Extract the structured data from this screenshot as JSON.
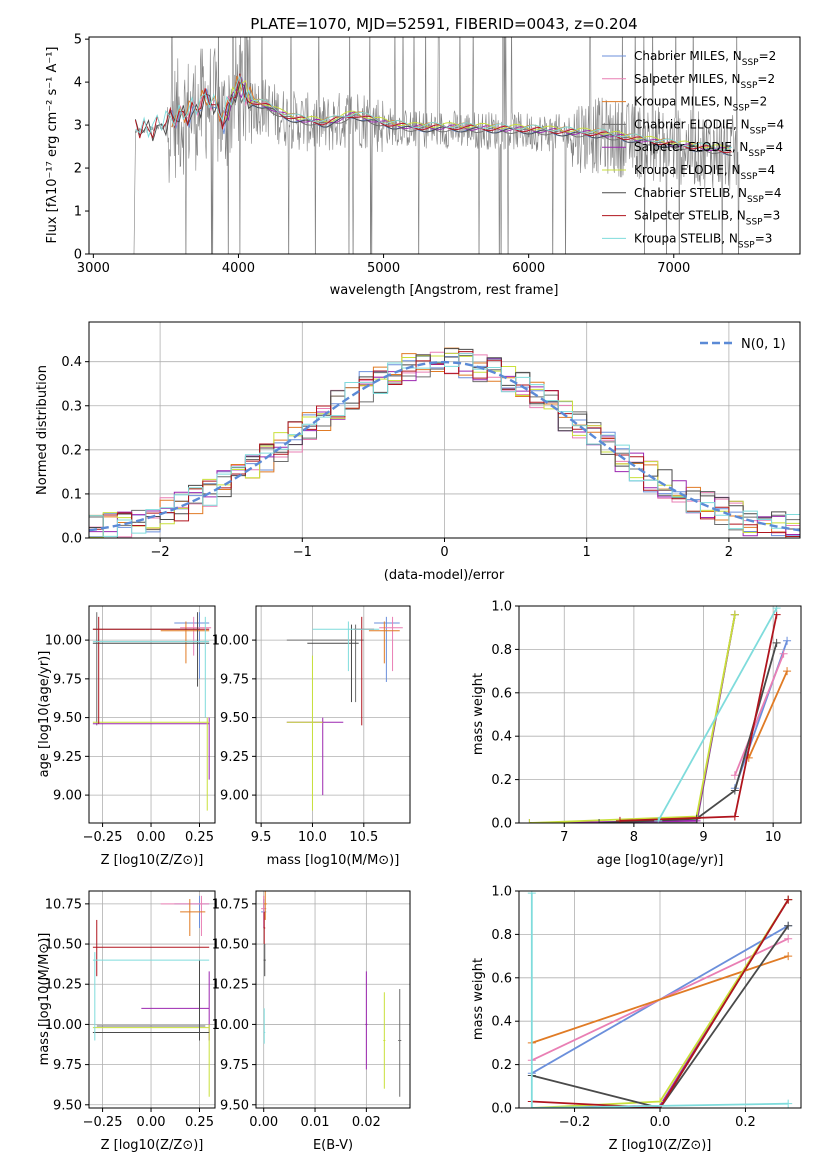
{
  "colors": {
    "Chabrier MILES": "#6b8fdb",
    "Salpeter MILES": "#e97fb4",
    "Kroupa MILES": "#e07b25",
    "Chabrier ELODIE": "#6e6e6e",
    "Salpeter ELODIE": "#9c27b0",
    "Kroupa ELODIE": "#c9e03b",
    "Chabrier STELIB": "#4a4a4a",
    "Salpeter STELIB": "#b0151e",
    "Kroupa STELIB": "#7fdcdc",
    "spectrum": "#808080",
    "normal": "#5b8ad6"
  },
  "chart_data": [
    {
      "panel": "spectrum",
      "type": "line",
      "title": "PLATE=1070, MJD=52591, FIBERID=0043, z=0.204",
      "xlabel": "wavelength [Angstrom, rest frame]",
      "ylabel": "Flux [fλ10⁻¹⁷ erg cm⁻² s⁻¹ A⁻¹]",
      "xlim": [
        2970,
        7870
      ],
      "ylim": [
        0,
        5.05
      ],
      "xticks": [
        "3000",
        "4000",
        "5000",
        "6000",
        "7000"
      ],
      "yticks": [
        "0",
        "1",
        "2",
        "3",
        "4",
        "5"
      ],
      "legend_position": "right",
      "legend": [
        {
          "model": "Chabrier MILES",
          "text": "Chabrier MILES, N",
          "sub": "SSP",
          "eq": "=2"
        },
        {
          "model": "Salpeter MILES",
          "text": "Salpeter MILES, N",
          "sub": "SSP",
          "eq": "=2"
        },
        {
          "model": "Kroupa MILES",
          "text": "Kroupa MILES, N",
          "sub": "SSP",
          "eq": "=2"
        },
        {
          "model": "Chabrier ELODIE",
          "text": "Chabrier ELODIE, N",
          "sub": "SSP",
          "eq": "=4"
        },
        {
          "model": "Salpeter ELODIE",
          "text": "Salpeter ELODIE, N",
          "sub": "SSP",
          "eq": "=4"
        },
        {
          "model": "Kroupa ELODIE",
          "text": "Kroupa ELODIE, N",
          "sub": "SSP",
          "eq": "=4"
        },
        {
          "model": "Chabrier STELIB",
          "text": "Chabrier STELIB, N",
          "sub": "SSP",
          "eq": "=4"
        },
        {
          "model": "Salpeter STELIB",
          "text": "Salpeter STELIB, N",
          "sub": "SSP",
          "eq": "=3"
        },
        {
          "model": "Kroupa STELIB",
          "text": "Kroupa STELIB, N",
          "sub": "SSP",
          "eq": "=3"
        }
      ],
      "continuum": [
        [
          3300,
          2.85
        ],
        [
          3400,
          2.9
        ],
        [
          3500,
          3.0
        ],
        [
          3600,
          3.2
        ],
        [
          3700,
          3.3
        ],
        [
          3800,
          3.6
        ],
        [
          3900,
          3.1
        ],
        [
          4000,
          3.9
        ],
        [
          4100,
          3.5
        ],
        [
          4200,
          3.4
        ],
        [
          4300,
          3.2
        ],
        [
          4400,
          3.1
        ],
        [
          4600,
          3.0
        ],
        [
          4800,
          3.2
        ],
        [
          5000,
          3.0
        ],
        [
          5200,
          2.9
        ],
        [
          5500,
          2.9
        ],
        [
          6000,
          2.85
        ],
        [
          6500,
          2.75
        ],
        [
          7000,
          2.5
        ],
        [
          7400,
          2.35
        ]
      ]
    },
    {
      "panel": "residuals",
      "type": "line",
      "xlabel": "(data-model)/error",
      "ylabel": "Normed distribution",
      "xlim": [
        -2.5,
        2.5
      ],
      "ylim": [
        0,
        0.49
      ],
      "xticks": [
        "−2",
        "−1",
        "0",
        "1",
        "2"
      ],
      "yticks": [
        "0.0",
        "0.1",
        "0.2",
        "0.3",
        "0.4"
      ],
      "grid": true,
      "legend_position": "top-right",
      "series": [
        {
          "name": "N(0, 1)",
          "type": "gaussian",
          "mu": 0,
          "sigma": 1
        }
      ]
    },
    {
      "panel": "age-vs-Z",
      "type": "scatter",
      "xlabel": "Z [log10(Z/Z⊙)]",
      "ylabel": "age [log10(age/yr)]",
      "xlim": [
        -0.32,
        0.33
      ],
      "ylim": [
        8.82,
        10.22
      ],
      "xticks": [
        "−0.25",
        "0.00",
        "0.25"
      ],
      "yticks": [
        "9.00",
        "9.25",
        "9.50",
        "9.75",
        "10.00"
      ],
      "grid": true
    },
    {
      "panel": "age-vs-mass",
      "type": "scatter",
      "xlabel": "mass [log10(M/M⊙)]",
      "xlim": [
        9.45,
        10.95
      ],
      "ylim": [
        8.82,
        10.22
      ],
      "xticks": [
        "9.5",
        "10.0",
        "10.5"
      ],
      "yticks": [
        "9.00",
        "9.25",
        "9.50",
        "9.75",
        "10.00"
      ],
      "grid": true
    },
    {
      "panel": "weight-vs-age",
      "type": "line",
      "xlabel": "age [log10(age/yr)]",
      "ylabel": "mass weight",
      "xlim": [
        6.35,
        10.4
      ],
      "ylim": [
        0,
        1
      ],
      "xticks": [
        "7",
        "8",
        "9",
        "10"
      ],
      "yticks": [
        "0.0",
        "0.2",
        "0.4",
        "0.6",
        "0.8",
        "1.0"
      ],
      "grid": true,
      "series": [
        {
          "model": "Chabrier MILES",
          "x": [
            9.45,
            10.2
          ],
          "y": [
            0.16,
            0.84
          ]
        },
        {
          "model": "Salpeter MILES",
          "x": [
            9.45,
            10.15
          ],
          "y": [
            0.22,
            0.78
          ]
        },
        {
          "model": "Kroupa MILES",
          "x": [
            9.65,
            10.2
          ],
          "y": [
            0.3,
            0.7
          ]
        },
        {
          "model": "Chabrier ELODIE",
          "x": [
            6.5,
            8.9,
            9.45
          ],
          "y": [
            0.0,
            0.0,
            0.96
          ]
        },
        {
          "model": "Salpeter ELODIE",
          "x": [
            6.5,
            8.9,
            9.45
          ],
          "y": [
            0.0,
            0.01,
            0.96
          ]
        },
        {
          "model": "Kroupa ELODIE",
          "x": [
            6.5,
            8.9,
            9.45
          ],
          "y": [
            0.0,
            0.03,
            0.96
          ]
        },
        {
          "model": "Chabrier STELIB",
          "x": [
            7.5,
            8.9,
            9.45,
            10.05
          ],
          "y": [
            0.0,
            0.02,
            0.15,
            0.83
          ]
        },
        {
          "model": "Salpeter STELIB",
          "x": [
            7.8,
            9.45,
            10.05
          ],
          "y": [
            0.01,
            0.03,
            0.96
          ]
        },
        {
          "model": "Kroupa STELIB",
          "x": [
            8.35,
            10.05
          ],
          "y": [
            0.01,
            0.99
          ]
        }
      ]
    },
    {
      "panel": "mass-vs-Z",
      "type": "scatter",
      "xlabel": "Z [log10(Z/Z⊙)]",
      "ylabel": "mass [log10(M/M⊙)]",
      "xlim": [
        -0.32,
        0.33
      ],
      "ylim": [
        9.48,
        10.83
      ],
      "xticks": [
        "−0.25",
        "0.00",
        "0.25"
      ],
      "yticks": [
        "9.50",
        "9.75",
        "10.00",
        "10.25",
        "10.50",
        "10.75"
      ],
      "grid": true
    },
    {
      "panel": "mass-vs-EBV",
      "type": "scatter",
      "xlabel": "E(B-V)",
      "xlim": [
        -0.0015,
        0.0285
      ],
      "ylim": [
        9.48,
        10.83
      ],
      "xticks": [
        "0.00",
        "0.01",
        "0.02"
      ],
      "yticks": [
        "9.50",
        "9.75",
        "10.00",
        "10.25",
        "10.50",
        "10.75"
      ],
      "grid": true
    },
    {
      "panel": "weight-vs-Z",
      "type": "line",
      "xlabel": "Z [log10(Z/Z⊙)]",
      "ylabel": "mass weight",
      "xlim": [
        -0.33,
        0.33
      ],
      "ylim": [
        0,
        1
      ],
      "xticks": [
        "−0.2",
        "0.0",
        "0.2"
      ],
      "yticks": [
        "0.0",
        "0.2",
        "0.4",
        "0.6",
        "0.8",
        "1.0"
      ],
      "grid": true,
      "series": [
        {
          "model": "Chabrier MILES",
          "x": [
            -0.3,
            0.3
          ],
          "y": [
            0.16,
            0.84
          ]
        },
        {
          "model": "Salpeter MILES",
          "x": [
            -0.3,
            0.3
          ],
          "y": [
            0.22,
            0.78
          ]
        },
        {
          "model": "Kroupa MILES",
          "x": [
            -0.3,
            0.3
          ],
          "y": [
            0.3,
            0.7
          ]
        },
        {
          "model": "Chabrier ELODIE",
          "x": [
            -0.3,
            0.0,
            0.3
          ],
          "y": [
            0.0,
            0.0,
            0.96
          ]
        },
        {
          "model": "Salpeter ELODIE",
          "x": [
            -0.3,
            0.0,
            0.3
          ],
          "y": [
            0.0,
            0.01,
            0.96
          ]
        },
        {
          "model": "Kroupa ELODIE",
          "x": [
            -0.3,
            0.0,
            0.3
          ],
          "y": [
            0.0,
            0.03,
            0.96
          ]
        },
        {
          "model": "Chabrier STELIB",
          "x": [
            -0.3,
            0.0,
            0.3
          ],
          "y": [
            0.15,
            0.0,
            0.84
          ]
        },
        {
          "model": "Salpeter STELIB",
          "x": [
            -0.3,
            0.0,
            0.3
          ],
          "y": [
            0.03,
            0.0,
            0.96
          ]
        },
        {
          "model": "Kroupa STELIB",
          "x": [
            -0.3,
            -0.3,
            0.3
          ],
          "y": [
            0.99,
            0.0,
            0.02
          ]
        }
      ]
    }
  ]
}
